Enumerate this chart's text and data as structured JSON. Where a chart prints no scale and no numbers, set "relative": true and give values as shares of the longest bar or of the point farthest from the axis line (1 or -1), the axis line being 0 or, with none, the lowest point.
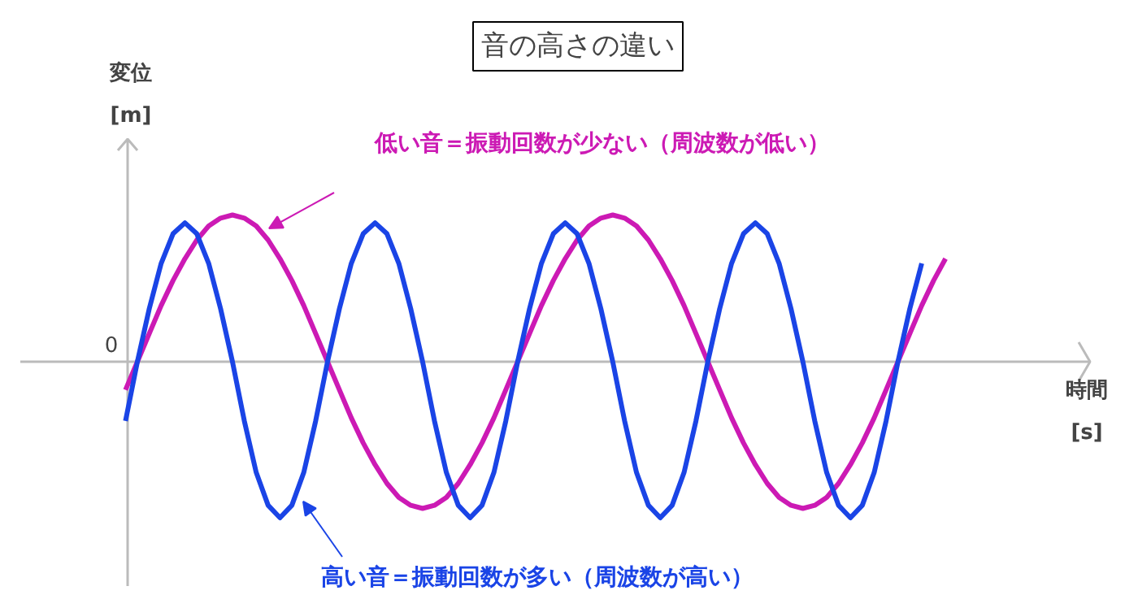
{
  "chart_data": {
    "type": "line",
    "title": "音の高さの違い",
    "relative": true,
    "annotations": [
      "0",
      "変位\n[m]",
      "時間\n[s]"
    ],
    "categories": [
      null,
      null,
      null,
      null,
      null,
      null,
      null,
      null,
      null,
      null,
      null,
      null,
      null,
      null,
      null,
      null,
      null,
      null,
      null,
      null,
      null,
      null,
      null,
      null,
      null,
      null,
      null,
      null,
      null,
      null,
      null,
      null,
      null,
      null,
      null,
      null,
      null,
      null,
      null,
      null,
      null,
      null,
      null,
      null,
      null,
      null,
      null,
      null,
      null,
      null,
      null,
      null,
      null,
      null,
      null,
      null,
      null,
      null,
      null,
      null,
      null,
      null,
      null,
      null,
      null,
      null,
      null,
      null,
      null,
      null
    ],
    "series": [
      {
        "name": "低い音＝振動回数が少ない（周波数が低い）",
        "color": "#cc1ab4",
        "values": [
          -0.18,
          0,
          0.18,
          0.36,
          0.52,
          0.66,
          0.78,
          0.87,
          0.92,
          0.94,
          0.92,
          0.87,
          0.78,
          0.66,
          0.52,
          0.36,
          0.18,
          0,
          -0.18,
          -0.36,
          -0.52,
          -0.66,
          -0.78,
          -0.87,
          -0.92,
          -0.94,
          -0.92,
          -0.87,
          -0.78,
          -0.66,
          -0.52,
          -0.36,
          -0.18,
          0,
          0.18,
          0.36,
          0.52,
          0.66,
          0.78,
          0.87,
          0.92,
          0.94,
          0.92,
          0.87,
          0.78,
          0.66,
          0.52,
          0.36,
          0.18,
          0,
          -0.18,
          -0.36,
          -0.52,
          -0.66,
          -0.78,
          -0.87,
          -0.92,
          -0.94,
          -0.92,
          -0.87,
          -0.78,
          -0.66,
          -0.52,
          -0.36,
          -0.18,
          0,
          0.18,
          0.36,
          0.52,
          0.66
        ]
      },
      {
        "name": "高い音＝振動回数が多い（周波数が高い）",
        "color": "#1a44e6",
        "values": [
          -0.38,
          0,
          0.34,
          0.63,
          0.82,
          0.89,
          0.82,
          0.63,
          0.34,
          0,
          -0.38,
          -0.71,
          -0.92,
          -1,
          -0.92,
          -0.71,
          -0.38,
          0,
          0.34,
          0.63,
          0.82,
          0.89,
          0.82,
          0.63,
          0.34,
          0,
          -0.38,
          -0.71,
          -0.92,
          -1,
          -0.92,
          -0.71,
          -0.38,
          0,
          0.34,
          0.63,
          0.82,
          0.89,
          0.82,
          0.63,
          0.34,
          0,
          -0.38,
          -0.71,
          -0.92,
          -1,
          -0.92,
          -0.71,
          -0.38,
          0,
          0.34,
          0.63,
          0.82,
          0.89,
          0.82,
          0.63,
          0.34,
          0,
          -0.38,
          -0.71,
          -0.92,
          -1,
          -0.92,
          -0.71,
          -0.38,
          0,
          0.34,
          0.63,
          null,
          null
        ]
      }
    ]
  }
}
